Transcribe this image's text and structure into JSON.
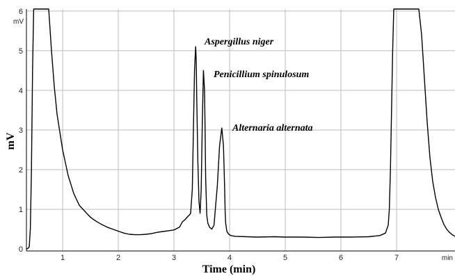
{
  "chart_data": {
    "type": "line",
    "xlabel": "Time (min)",
    "ylabel": "mV",
    "x_unit_label": "min",
    "y_unit_label": "mV",
    "xlim": [
      0.35,
      8.05
    ],
    "ylim": [
      -0.05,
      6.05
    ],
    "x_ticks": [
      1,
      2,
      3,
      4,
      5,
      6,
      7
    ],
    "y_ticks": [
      0,
      1,
      2,
      3,
      4,
      5,
      6
    ],
    "grid": true,
    "annotations": [
      {
        "text": "Aspergillus niger",
        "x": 3.4,
        "y": 5.1
      },
      {
        "text": "Penicillium spinulosum",
        "x": 3.55,
        "y": 4.5
      },
      {
        "text": "Alternaria alternata",
        "x": 3.92,
        "y": 3.05
      }
    ],
    "series": [
      {
        "x": [
          0.35,
          0.37,
          0.4,
          0.42,
          0.44,
          0.46,
          0.48,
          0.5,
          0.52,
          0.55,
          0.58,
          0.62,
          0.66,
          0.7,
          0.75,
          0.8,
          0.85,
          0.9,
          1.0,
          1.1,
          1.2,
          1.3,
          1.4,
          1.5,
          1.6,
          1.7,
          1.8,
          1.9,
          2.0,
          2.1,
          2.2,
          2.3,
          2.4,
          2.5,
          2.6,
          2.7,
          2.8,
          2.9,
          3.0,
          3.1,
          3.15,
          3.2,
          3.25,
          3.28,
          3.3,
          3.33,
          3.35,
          3.37,
          3.39,
          3.4,
          3.41,
          3.43,
          3.45,
          3.47,
          3.49,
          3.51,
          3.53,
          3.55,
          3.56,
          3.57,
          3.59,
          3.61,
          3.64,
          3.68,
          3.72,
          3.78,
          3.82,
          3.86,
          3.89,
          3.91,
          3.92,
          3.93,
          3.95,
          3.98,
          4.02,
          4.1,
          4.3,
          4.5,
          4.8,
          5.0,
          5.3,
          5.6,
          5.9,
          6.2,
          6.5,
          6.7,
          6.8,
          6.85,
          6.87,
          6.89,
          6.91,
          6.93,
          6.95,
          6.97,
          7.0,
          7.4,
          7.45,
          7.5,
          7.55,
          7.6,
          7.65,
          7.7,
          7.75,
          7.8,
          7.85,
          7.9,
          7.95,
          8.0,
          8.05
        ],
        "y": [
          0.0,
          0.01,
          0.05,
          0.5,
          2.0,
          4.5,
          6.05,
          6.05,
          6.05,
          6.05,
          6.05,
          6.05,
          6.05,
          6.05,
          6.05,
          5.0,
          4.1,
          3.4,
          2.5,
          1.85,
          1.4,
          1.1,
          0.95,
          0.8,
          0.7,
          0.62,
          0.55,
          0.5,
          0.45,
          0.4,
          0.37,
          0.36,
          0.36,
          0.37,
          0.39,
          0.42,
          0.44,
          0.46,
          0.48,
          0.55,
          0.68,
          0.74,
          0.82,
          0.86,
          0.9,
          1.5,
          3.0,
          4.5,
          5.1,
          4.8,
          3.8,
          2.2,
          1.2,
          0.9,
          1.5,
          3.2,
          4.5,
          4.0,
          3.0,
          1.8,
          0.85,
          0.65,
          0.55,
          0.5,
          0.6,
          1.6,
          2.6,
          3.05,
          2.6,
          1.6,
          0.95,
          0.65,
          0.45,
          0.38,
          0.34,
          0.32,
          0.31,
          0.3,
          0.31,
          0.3,
          0.3,
          0.29,
          0.3,
          0.3,
          0.31,
          0.34,
          0.4,
          0.6,
          1.0,
          2.0,
          3.5,
          5.0,
          6.05,
          6.05,
          6.05,
          6.05,
          5.4,
          4.3,
          3.2,
          2.3,
          1.7,
          1.3,
          1.0,
          0.8,
          0.62,
          0.5,
          0.42,
          0.36,
          0.32
        ]
      }
    ]
  }
}
